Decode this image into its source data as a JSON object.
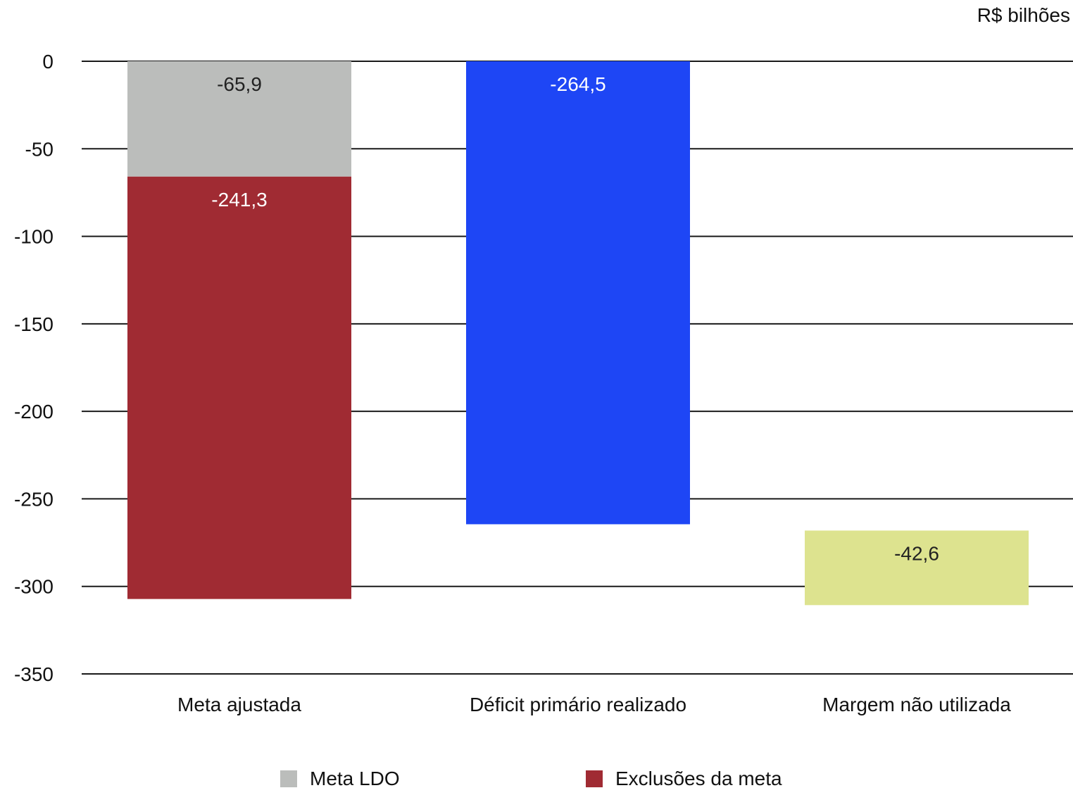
{
  "chart_data": {
    "type": "bar",
    "subtype": "waterfall",
    "unit_label": "R$ bilhões",
    "categories": [
      "Meta ajustada",
      "Déficit primário realizado",
      "Margem não utilizada"
    ],
    "ylim": [
      -350,
      0
    ],
    "yticks": [
      0,
      -50,
      -100,
      -150,
      -200,
      -250,
      -300,
      -350
    ],
    "ytick_labels": [
      "0",
      "-50",
      "-100",
      "-150",
      "-200",
      "-250",
      "-300",
      "-350"
    ],
    "grid": true,
    "legend_position": "bottom",
    "series": [
      {
        "name": "Meta LDO",
        "color": "#bbbdbb"
      },
      {
        "name": "Exclusões da meta",
        "color": "#a02b33"
      }
    ],
    "segments": [
      {
        "category": "Meta ajustada",
        "start": 0,
        "end": -65.9,
        "value": -65.9,
        "label": "-65,9",
        "color": "#bbbdbb",
        "label_color": "#222222"
      },
      {
        "category": "Meta ajustada",
        "start": -65.9,
        "end": -307.2,
        "value": -241.3,
        "label": "-241,3",
        "color": "#a02b33",
        "label_color": "#ffffff"
      },
      {
        "category": "Déficit primário realizado",
        "start": 0,
        "end": -264.5,
        "value": -264.5,
        "label": "-264,5",
        "color": "#1e46f5",
        "label_color": "#ffffff"
      },
      {
        "category": "Margem não utilizada",
        "start": -268.1,
        "end": -310.7,
        "value": -42.6,
        "label": "-42,6",
        "color": "#dde38f",
        "label_color": "#222222"
      }
    ]
  }
}
